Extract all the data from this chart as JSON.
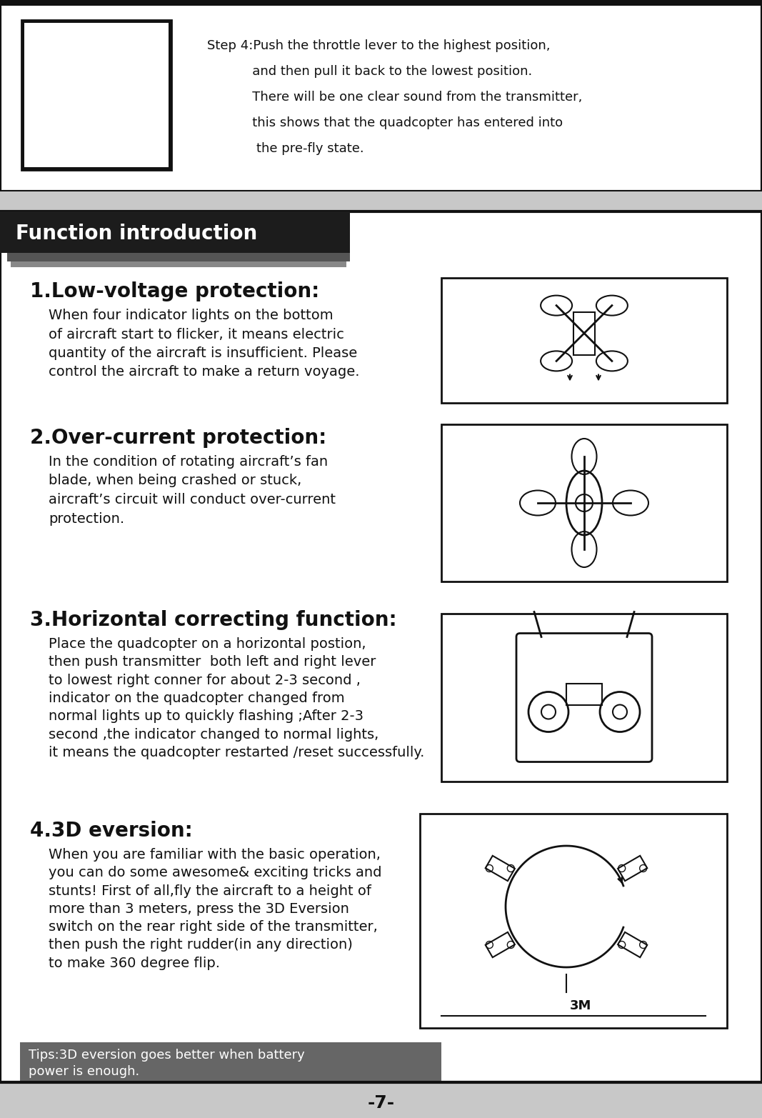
{
  "fig_w": 10.67,
  "fig_h": 15.65,
  "dpi": 100,
  "bg_color": "#c8c8c8",
  "white": "#ffffff",
  "black": "#111111",
  "dark_header": "#1c1c1c",
  "tip_bg": "#666666",
  "step4_text_line1": "Step 4:Push the throttle lever to the highest position,",
  "step4_text_line2": "           and then pull it back to the lowest position.",
  "step4_text_line3": "           There will be one clear sound from the transmitter,",
  "step4_text_line4": "           this shows that the quadcopter has entered into ",
  "step4_text_line5": "            the pre-fly state.",
  "section_title": "Function introduction",
  "item1_title": "1.Low-voltage protection:",
  "item1_body": "When four indicator lights on the bottom\nof aircraft start to flicker, it means electric\nquantity of the aircraft is insufficient. Please\ncontrol the aircraft to make a return voyage.",
  "item2_title": "2.Over-current protection:",
  "item2_body": "In the condition of rotating aircraft’s fan\nblade, when being crashed or stuck,\naircraft’s circuit will conduct over-current\nprotection.",
  "item3_title": "3.Horizontal correcting function:",
  "item3_body": "Place the quadcopter on a horizontal postion,\nthen push transmitter  both left and right lever\nto lowest right conner for about 2-3 second ,\nindicator on the quadcopter changed from\nnormal lights up to quickly flashing ;After 2-3\nsecond ,the indicator changed to normal lights,\nit means the quadcopter restarted /reset successfully.",
  "item4_title": "4.3D eversion:",
  "item4_body": "When you are familiar with the basic operation,\nyou can do some awesome& exciting tricks and\nstunts! First of all,fly the aircraft to a height of\nmore than 3 meters, press the 3D Eversion\nswitch on the rear right side of the transmitter,\nthen push the right rudder(in any direction)\nto make 360 degree flip.",
  "tip_text": "Tips:3D eversion goes better when battery\npower is enough.",
  "page_number": "-7-"
}
